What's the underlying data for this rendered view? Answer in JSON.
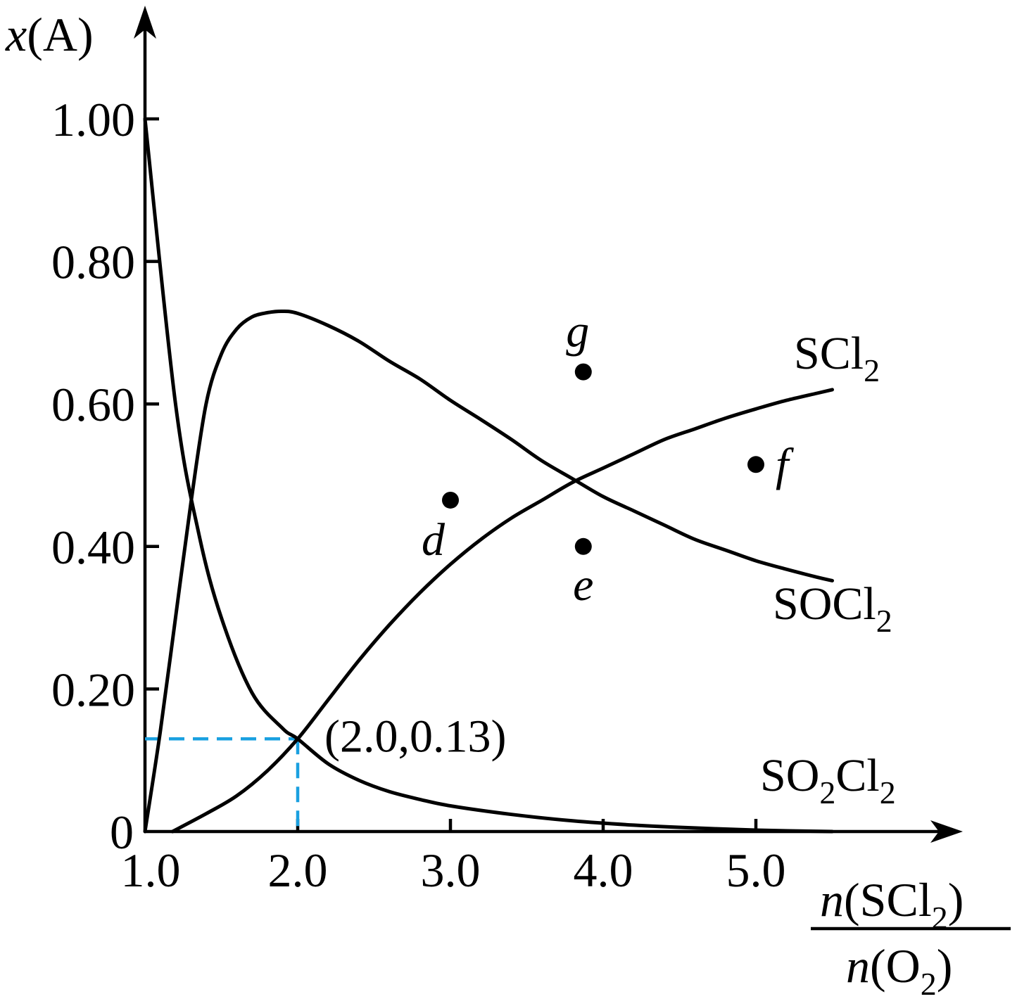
{
  "chart_data": {
    "type": "line",
    "ylabel": {
      "var": "x",
      "rest": "(A)"
    },
    "xlabel": {
      "numerator": {
        "var": "n",
        "open": "(SCl",
        "sub": "2",
        "close": ")"
      },
      "denominator": {
        "var": "n",
        "open": "(O",
        "sub": "2",
        "close": ")"
      }
    },
    "xlim": [
      1.0,
      5.6
    ],
    "ylim": [
      0,
      1.0
    ],
    "xticks": [
      1.0,
      2.0,
      3.0,
      4.0,
      5.0
    ],
    "xtick_labels": [
      "1.0",
      "2.0",
      "3.0",
      "4.0",
      "5.0"
    ],
    "yticks": [
      0,
      0.2,
      0.4,
      0.6,
      0.8,
      1.0
    ],
    "ytick_labels": [
      "0",
      "0.20",
      "0.40",
      "0.60",
      "0.80",
      "1.00"
    ],
    "grid": false,
    "legend": "none",
    "series": [
      {
        "name": "SCl₂",
        "label": {
          "main": "SCl",
          "sub": "2",
          "tail": ""
        },
        "x": [
          1.18,
          1.4,
          1.6,
          1.8,
          2.0,
          2.2,
          2.4,
          2.6,
          2.8,
          3.0,
          3.2,
          3.4,
          3.6,
          3.8,
          4.0,
          4.2,
          4.4,
          4.6,
          4.8,
          5.0,
          5.2,
          5.4,
          5.5
        ],
        "values": [
          0.0,
          0.025,
          0.05,
          0.085,
          0.13,
          0.185,
          0.24,
          0.29,
          0.335,
          0.375,
          0.41,
          0.44,
          0.465,
          0.49,
          0.51,
          0.53,
          0.55,
          0.565,
          0.58,
          0.593,
          0.605,
          0.615,
          0.62
        ]
      },
      {
        "name": "SOCl₂",
        "label": {
          "main": "SOCl",
          "sub": "2",
          "tail": ""
        },
        "x": [
          1.0,
          1.1,
          1.2,
          1.3,
          1.4,
          1.5,
          1.6,
          1.7,
          1.8,
          1.9,
          2.0,
          2.2,
          2.4,
          2.6,
          2.8,
          3.0,
          3.2,
          3.4,
          3.6,
          3.8,
          4.0,
          4.2,
          4.4,
          4.6,
          4.8,
          5.0,
          5.2,
          5.4,
          5.5
        ],
        "values": [
          0.0,
          0.14,
          0.3,
          0.46,
          0.6,
          0.67,
          0.705,
          0.722,
          0.728,
          0.73,
          0.727,
          0.71,
          0.688,
          0.66,
          0.635,
          0.605,
          0.578,
          0.55,
          0.52,
          0.495,
          0.47,
          0.45,
          0.43,
          0.41,
          0.395,
          0.38,
          0.368,
          0.357,
          0.352
        ]
      },
      {
        "name": "SO₂Cl₂",
        "label": {
          "main": "SO",
          "sub": "2",
          "tail": "Cl₂"
        },
        "x": [
          1.0,
          1.2,
          1.35,
          1.5,
          1.7,
          1.9,
          2.0,
          2.2,
          2.4,
          2.6,
          2.8,
          3.0,
          3.4,
          3.8,
          4.2,
          4.6,
          5.0,
          5.5
        ],
        "values": [
          1.0,
          0.6,
          0.42,
          0.3,
          0.195,
          0.145,
          0.13,
          0.095,
          0.072,
          0.056,
          0.045,
          0.036,
          0.024,
          0.015,
          0.009,
          0.005,
          0.002,
          0.0
        ]
      }
    ],
    "points": [
      {
        "name": "d",
        "x": 3.0,
        "y": 0.465
      },
      {
        "name": "e",
        "x": 3.87,
        "y": 0.4
      },
      {
        "name": "f",
        "x": 5.0,
        "y": 0.515
      },
      {
        "name": "g",
        "x": 3.87,
        "y": 0.645
      }
    ],
    "annotations": [
      {
        "text": "(2.0,0.13)",
        "x": 2.0,
        "y": 0.13,
        "guide_color": "#1aa0e0"
      }
    ]
  }
}
